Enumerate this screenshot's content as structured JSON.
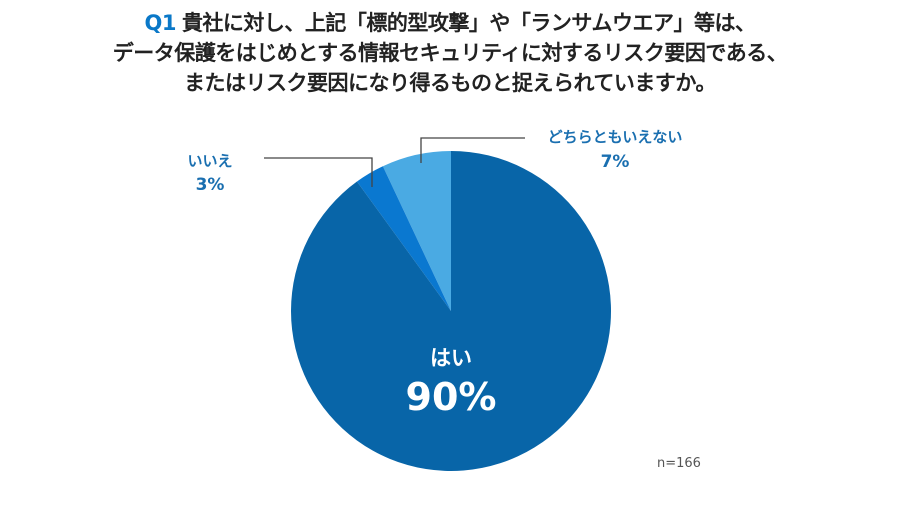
{
  "chart_data": {
    "type": "pie",
    "title_prefix": "Q1",
    "title_lines": [
      "貴社に対し、上記「標的型攻撃」や「ランサムウエア」等は、",
      "データ保護をはじめとする情報セキュリティに対するリスク要因である、",
      "またはリスク要因になり得るものと捉えられていますか。"
    ],
    "slices": [
      {
        "label": "はい",
        "value": 90,
        "value_label": "90%",
        "color": "#0865a8"
      },
      {
        "label": "いいえ",
        "value": 3,
        "value_label": "3%",
        "color": "#0a78d0"
      },
      {
        "label": "どちらともいえない",
        "value": 7,
        "value_label": "7%",
        "color": "#4aaae3"
      }
    ],
    "note": "n=166"
  }
}
